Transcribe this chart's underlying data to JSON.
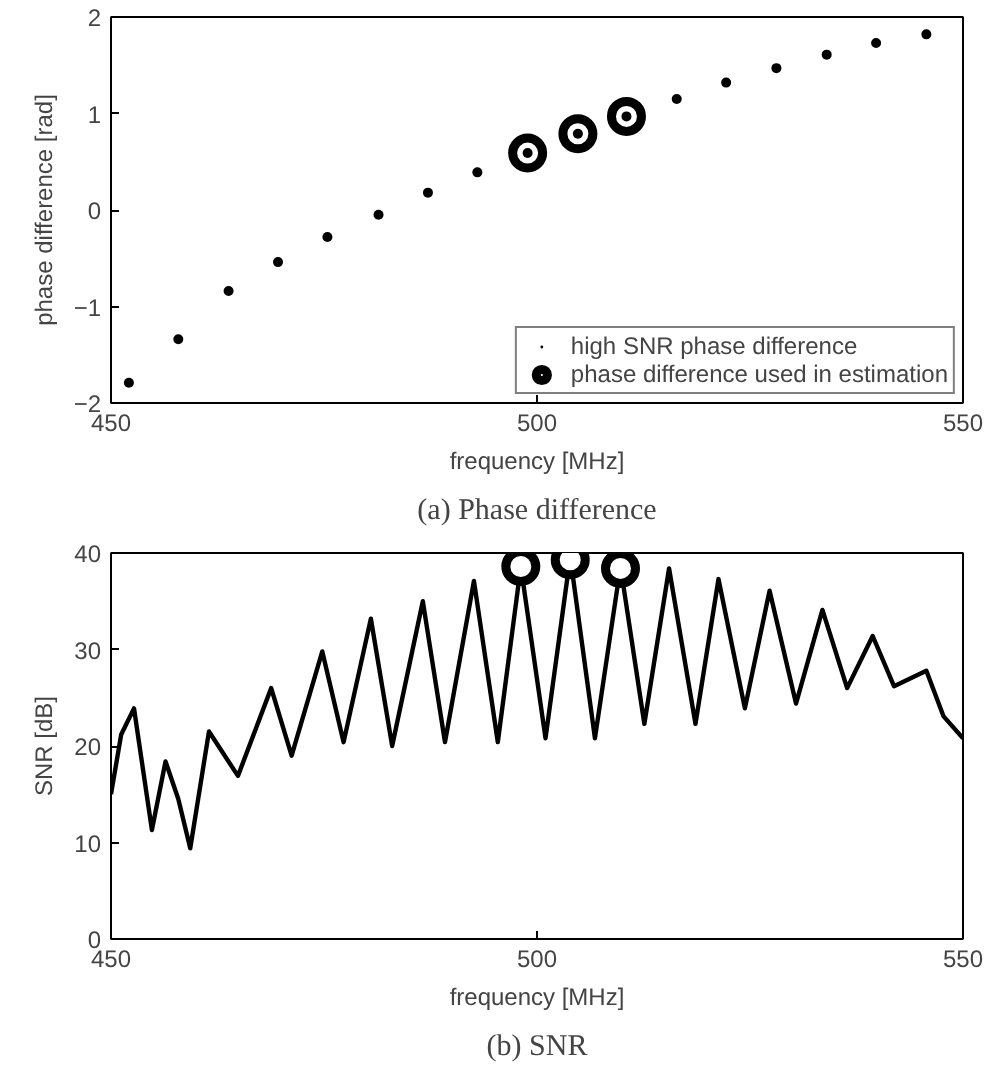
{
  "chart_data": [
    {
      "type": "scatter",
      "title": "(a) Phase difference",
      "xlabel": "frequency [MHz]",
      "ylabel": "phase difference [rad]",
      "xlim": [
        450,
        550
      ],
      "ylim": [
        -2,
        2
      ],
      "xticks": [
        450,
        500,
        550
      ],
      "yticks": [
        -2,
        -1,
        0,
        1,
        2
      ],
      "grid": false,
      "legend": "bottom right",
      "series": [
        {
          "name": "phase difference used in estimation",
          "type": "scatter",
          "marker": "circle",
          "color": "#000000",
          "x": [
            498.9,
            504.8,
            510.5
          ],
          "values": [
            0.59,
            0.79,
            0.97
          ]
        },
        {
          "name": "high SNR phase difference",
          "type": "scatter",
          "marker": "circle",
          "color": "#000000",
          "x": [
            452.1,
            457.9,
            463.8,
            469.6,
            475.4,
            481.4,
            487.2,
            493.0,
            498.9,
            504.8,
            510.5,
            516.4,
            522.2,
            528.1,
            534.0,
            539.8,
            545.7
          ],
          "values": [
            -1.79,
            -1.34,
            -0.84,
            -0.54,
            -0.28,
            -0.05,
            0.18,
            0.39,
            0.59,
            0.79,
            0.97,
            1.15,
            1.32,
            1.47,
            1.61,
            1.73,
            1.82
          ]
        }
      ]
    },
    {
      "type": "line",
      "title": "(b) SNR",
      "xlabel": "frequency [MHz]",
      "ylabel": "SNR [dB]",
      "xlim": [
        450,
        550
      ],
      "ylim": [
        0,
        40
      ],
      "xticks": [
        450,
        500,
        550
      ],
      "yticks": [
        0,
        10,
        20,
        30,
        40
      ],
      "grid": false,
      "legend": false,
      "series": [
        {
          "type": "line",
          "line_style": "solid",
          "color": "#000000",
          "x": [
            450,
            451.2,
            452.7,
            454.8,
            456.4,
            457.9,
            459.3,
            461.5,
            464.9,
            468.8,
            471.2,
            474.8,
            477.3,
            480.5,
            483.0,
            486.6,
            489.2,
            492.6,
            495.4,
            498.1,
            501.0,
            503.9,
            506.8,
            509.8,
            512.6,
            515.5,
            518.6,
            521.3,
            524.4,
            527.3,
            530.4,
            533.5,
            536.4,
            539.4,
            541.9,
            545.7,
            547.7,
            550
          ],
          "values": [
            15.0,
            21.2,
            23.9,
            11.3,
            18.4,
            14.5,
            9.4,
            21.5,
            16.9,
            26.0,
            19.0,
            29.8,
            20.4,
            33.2,
            20.0,
            35.0,
            20.4,
            37.1,
            20.4,
            38.6,
            20.8,
            39.6,
            20.8,
            38.6,
            22.3,
            38.4,
            22.3,
            37.3,
            23.9,
            36.1,
            24.4,
            34.1,
            26.0,
            31.4,
            26.2,
            27.8,
            23.1,
            20.8
          ]
        },
        {
          "type": "scatter",
          "marker": "circle",
          "color": "#000000",
          "x": [
            498.1,
            503.9,
            509.8
          ],
          "values": [
            38.6,
            39.3,
            38.4
          ]
        }
      ]
    }
  ]
}
